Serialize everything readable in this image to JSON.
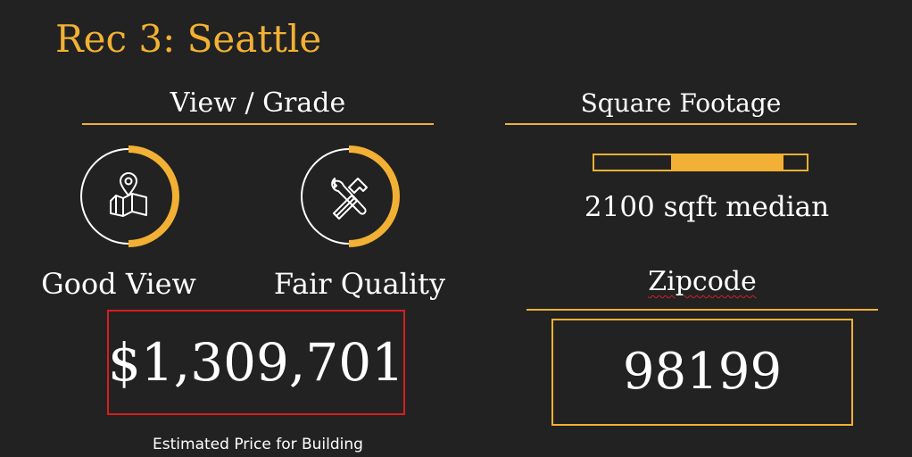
{
  "slide": {
    "title": "Rec 3: Seattle",
    "accent_color": "#f2b134",
    "background_color": "#222222",
    "text_color": "#ffffff",
    "highlight_border_color": "#d61f1f"
  },
  "view_grade": {
    "heading": "View / Grade",
    "view": {
      "icon": "map-pin-icon",
      "label": "Good View",
      "level_fraction": 0.5
    },
    "quality": {
      "icon": "tools-icon",
      "label": "Fair Quality",
      "level_fraction": 0.5
    }
  },
  "price": {
    "value": "$1,309,701",
    "caption": "Estimated Price for Building"
  },
  "square_footage": {
    "heading": "Square Footage",
    "bar_start_fraction": 0.36,
    "bar_end_fraction": 0.89,
    "label": "2100 sqft median"
  },
  "zipcode": {
    "heading": "Zipcode",
    "value": "98199"
  }
}
